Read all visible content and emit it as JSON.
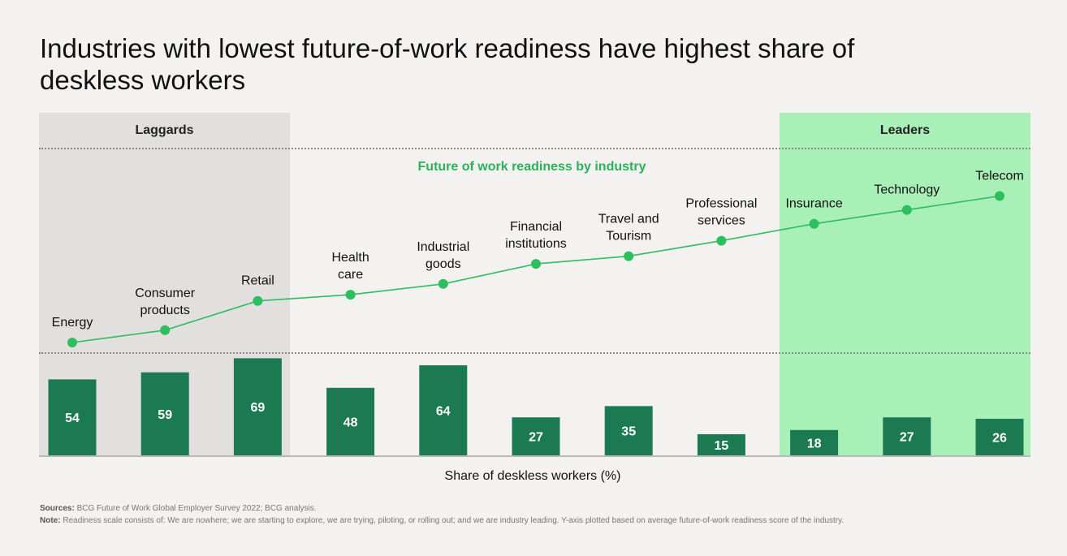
{
  "title": "Industries with lowest future-of-work readiness have highest share of deskless workers",
  "groups": {
    "laggards": "Laggards",
    "leaders": "Leaders"
  },
  "chart_data": {
    "type": "line+bar",
    "title": "Industries with lowest future-of-work readiness have highest share of deskless workers",
    "categories": [
      "Energy",
      "Consumer products",
      "Retail",
      "Health care",
      "Industrial goods",
      "Financial institutions",
      "Travel and Tourism",
      "Professional services",
      "Insurance",
      "Technology",
      "Telecom"
    ],
    "category_labels": [
      [
        "Energy"
      ],
      [
        "Consumer",
        "products"
      ],
      [
        "Retail"
      ],
      [
        "Health",
        "care"
      ],
      [
        "Industrial",
        "goods"
      ],
      [
        "Financial",
        "institutions"
      ],
      [
        "Travel and",
        "Tourism"
      ],
      [
        "Professional",
        "services"
      ],
      [
        "Insurance"
      ],
      [
        "Technology"
      ],
      [
        "Telecom"
      ]
    ],
    "series": [
      {
        "name": "Future of work readiness by industry",
        "type": "line",
        "unit": "relative readiness score (estimated)",
        "values": [
          0.0,
          0.08,
          0.27,
          0.31,
          0.38,
          0.51,
          0.56,
          0.66,
          0.77,
          0.86,
          0.95
        ]
      },
      {
        "name": "Share of deskless workers (%)",
        "type": "bar",
        "values": [
          54,
          59,
          69,
          48,
          64,
          27,
          35,
          15,
          18,
          27,
          26
        ]
      }
    ],
    "line_label": "Future of work readiness by industry",
    "bar_axis_label": "Share of deskless workers (%)",
    "bar_ylim": [
      0,
      75
    ],
    "line_ylim": [
      0,
      1
    ],
    "line_color": "#2dbe5e",
    "bar_color": "#1b7a52"
  },
  "sources_label": "Sources:",
  "sources_text": "BCG Future of Work Global Employer Survey 2022; BCG analysis.",
  "note_label": "Note:",
  "note_text": "Readiness scale consists of: We are nowhere; we are starting to explore, we are trying, piloting, or rolling out; and we are industry leading. Y-axis plotted based on average future-of-work readiness score of the industry."
}
